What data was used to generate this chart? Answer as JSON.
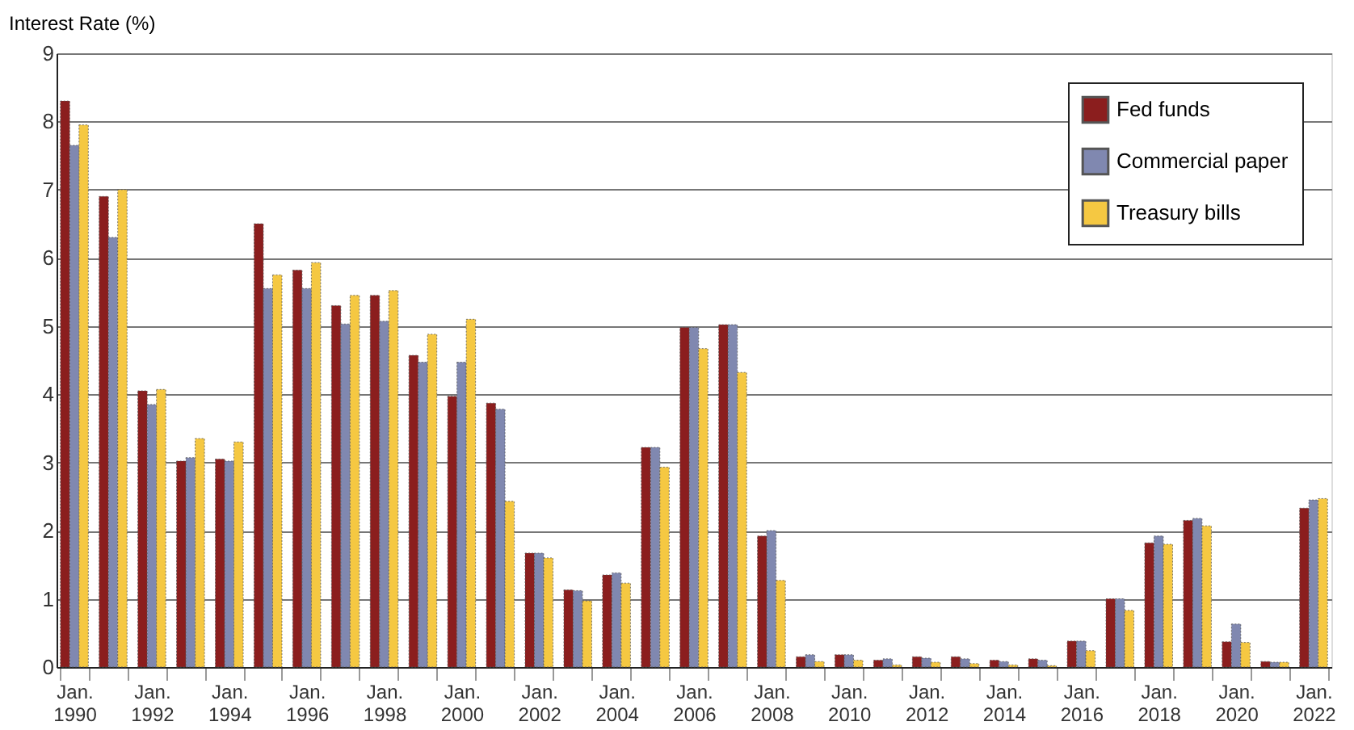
{
  "chart_data": {
    "type": "bar",
    "ylabel": "Interest Rate (%)",
    "categories": [
      "Jan. 1990",
      null,
      "Jan. 1992",
      null,
      "Jan. 1994",
      null,
      "Jan. 1996",
      null,
      "Jan. 1998",
      null,
      "Jan. 2000",
      null,
      "Jan. 2002",
      null,
      "Jan. 2004",
      null,
      "Jan. 2006",
      null,
      "Jan. 2008",
      null,
      "Jan. 2010",
      null,
      "Jan. 2012",
      null,
      "Jan. 2014",
      null,
      "Jan. 2016",
      null,
      "Jan. 2018",
      null,
      "Jan. 2020",
      null,
      "Jan. 2022"
    ],
    "series": [
      {
        "name": "Fed funds",
        "color": "#8b1e1e",
        "values": [
          8.3,
          6.9,
          4.05,
          3.02,
          3.05,
          6.5,
          5.82,
          5.3,
          5.45,
          4.57,
          3.97,
          3.87,
          1.67,
          1.13,
          1.35,
          3.22,
          4.98,
          5.02,
          1.92,
          0.15,
          0.18,
          0.1,
          0.15,
          0.15,
          0.1,
          0.12,
          0.38,
          1.0,
          1.82,
          2.15,
          0.37,
          0.08,
          2.33
        ]
      },
      {
        "name": "Commercial paper",
        "color": "#8088b0",
        "values": [
          7.65,
          6.3,
          3.85,
          3.07,
          3.02,
          5.55,
          5.55,
          5.03,
          5.07,
          4.47,
          4.47,
          3.78,
          1.67,
          1.12,
          1.38,
          3.22,
          4.98,
          5.02,
          2.0,
          0.18,
          0.18,
          0.12,
          0.13,
          0.12,
          0.08,
          0.1,
          0.38,
          1.0,
          1.92,
          2.18,
          0.63,
          0.07,
          2.45
        ]
      },
      {
        "name": "Treasury bills",
        "color": "#f5c842",
        "values": [
          7.95,
          7.0,
          4.07,
          3.35,
          3.3,
          5.75,
          5.93,
          5.45,
          5.52,
          4.88,
          5.1,
          2.43,
          1.6,
          0.97,
          1.23,
          2.93,
          4.67,
          4.32,
          1.27,
          0.08,
          0.1,
          0.03,
          0.07,
          0.05,
          0.03,
          0.02,
          0.24,
          0.83,
          1.8,
          2.07,
          0.36,
          0.07,
          2.47
        ]
      }
    ],
    "ylim": [
      0,
      9
    ],
    "yticks": [
      0,
      1,
      2,
      3,
      4,
      5,
      6,
      7,
      8,
      9
    ],
    "grid": "y",
    "legend": "top right"
  }
}
